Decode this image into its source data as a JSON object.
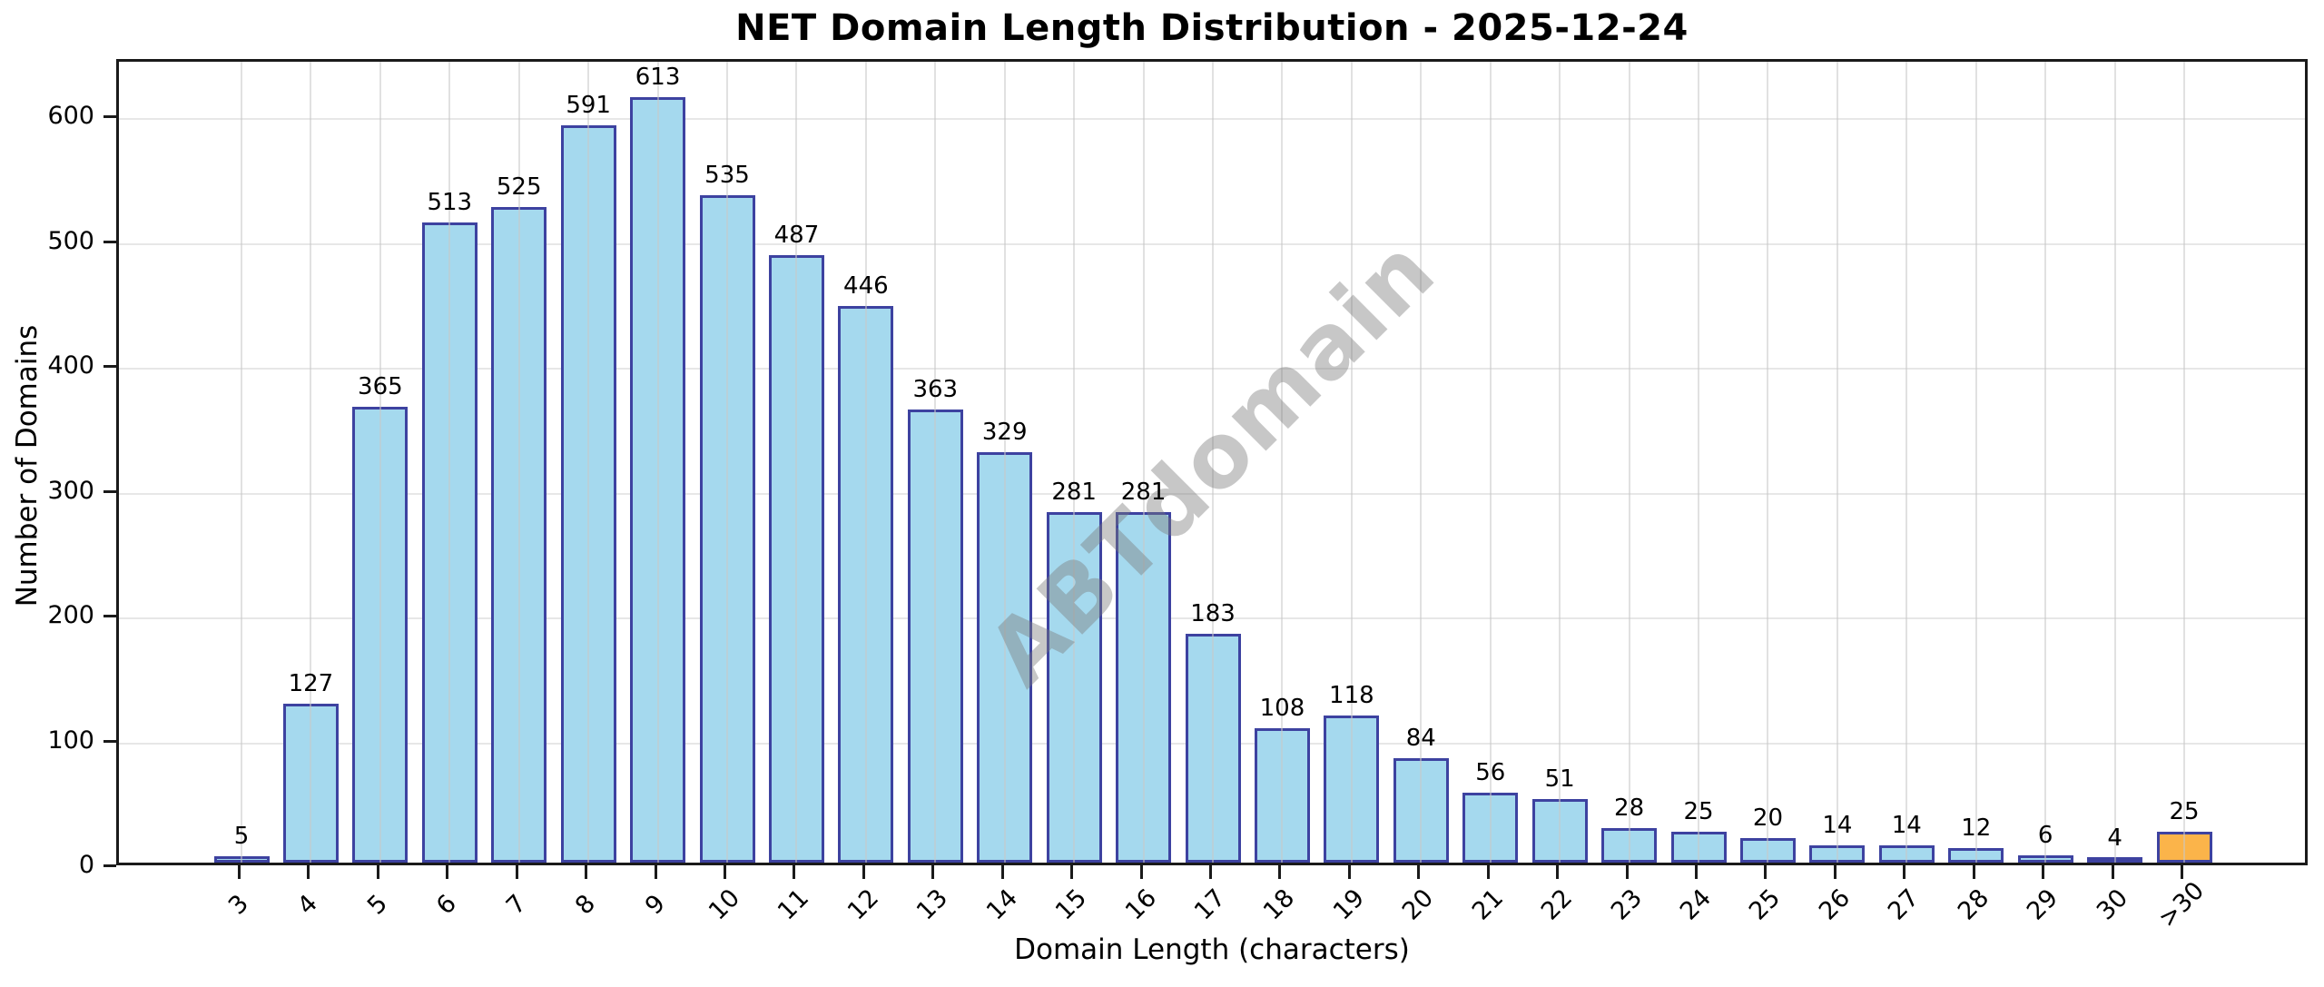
{
  "chart_data": {
    "type": "bar",
    "title": "NET Domain Length Distribution - 2025-12-24",
    "xlabel": "Domain Length (characters)",
    "ylabel": "Number of Domains",
    "categories": [
      "3",
      "4",
      "5",
      "6",
      "7",
      "8",
      "9",
      "10",
      "11",
      "12",
      "13",
      "14",
      "15",
      "16",
      "17",
      "18",
      "19",
      "20",
      "21",
      "22",
      "23",
      "24",
      "25",
      "26",
      "27",
      "28",
      "29",
      "30",
      ">30"
    ],
    "values": [
      5,
      127,
      365,
      513,
      525,
      591,
      613,
      535,
      487,
      446,
      363,
      329,
      281,
      281,
      183,
      108,
      118,
      84,
      56,
      51,
      28,
      25,
      20,
      14,
      14,
      12,
      6,
      4,
      25
    ],
    "yticks": [
      0,
      100,
      200,
      300,
      400,
      500,
      600
    ],
    "ylim": [
      0,
      646
    ],
    "grid": true,
    "legend": null,
    "bar_fill_color": "#a5d9ee",
    "bar_edge_color": "#3d42a0",
    "highlight_index": 28,
    "highlight_fill_color": "#fbb44a",
    "watermark_text": "ABTdomain"
  }
}
